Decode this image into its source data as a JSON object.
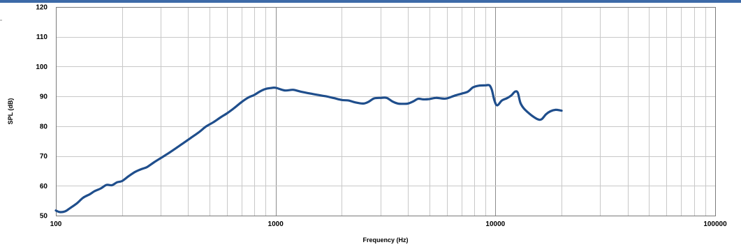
{
  "chart_data": {
    "type": "line",
    "title": "",
    "xlabel": "Frequency (Hz)",
    "ylabel": "SPL (dB)",
    "x_scale": "log",
    "xlim": [
      100,
      100000
    ],
    "ylim": [
      50,
      120
    ],
    "grid": true,
    "x_ticks": [
      "100",
      "1000",
      "10000",
      "100000"
    ],
    "y_ticks": [
      "50",
      "60",
      "70",
      "80",
      "90",
      "100",
      "110",
      "120"
    ],
    "line_color": "#1f4e8c",
    "series": [
      {
        "points": [
          [
            100,
            51.7
          ],
          [
            104,
            51.2
          ],
          [
            110,
            51.4
          ],
          [
            116,
            52.5
          ],
          [
            125,
            54.2
          ],
          [
            133,
            56.0
          ],
          [
            143,
            57.2
          ],
          [
            150,
            58.2
          ],
          [
            160,
            59.1
          ],
          [
            170,
            60.3
          ],
          [
            180,
            60.2
          ],
          [
            190,
            61.2
          ],
          [
            200,
            61.6
          ],
          [
            215,
            63.3
          ],
          [
            230,
            64.7
          ],
          [
            245,
            65.6
          ],
          [
            260,
            66.3
          ],
          [
            280,
            67.9
          ],
          [
            300,
            69.3
          ],
          [
            325,
            70.9
          ],
          [
            350,
            72.5
          ],
          [
            380,
            74.3
          ],
          [
            410,
            76.0
          ],
          [
            450,
            78.1
          ],
          [
            480,
            79.8
          ],
          [
            520,
            81.3
          ],
          [
            560,
            82.9
          ],
          [
            600,
            84.3
          ],
          [
            640,
            85.8
          ],
          [
            700,
            88.1
          ],
          [
            750,
            89.6
          ],
          [
            800,
            90.5
          ],
          [
            850,
            91.7
          ],
          [
            900,
            92.5
          ],
          [
            950,
            92.8
          ],
          [
            1000,
            92.9
          ],
          [
            1100,
            92.0
          ],
          [
            1200,
            92.2
          ],
          [
            1300,
            91.6
          ],
          [
            1500,
            90.7
          ],
          [
            1700,
            90.0
          ],
          [
            1850,
            89.4
          ],
          [
            2000,
            88.8
          ],
          [
            2150,
            88.6
          ],
          [
            2300,
            88.0
          ],
          [
            2500,
            87.6
          ],
          [
            2650,
            88.2
          ],
          [
            2800,
            89.3
          ],
          [
            3000,
            89.5
          ],
          [
            3200,
            89.5
          ],
          [
            3400,
            88.3
          ],
          [
            3600,
            87.6
          ],
          [
            3800,
            87.5
          ],
          [
            4000,
            87.6
          ],
          [
            4250,
            88.4
          ],
          [
            4450,
            89.2
          ],
          [
            4700,
            89.0
          ],
          [
            5000,
            89.1
          ],
          [
            5350,
            89.5
          ],
          [
            5700,
            89.3
          ],
          [
            6000,
            89.3
          ],
          [
            6500,
            90.2
          ],
          [
            7000,
            90.9
          ],
          [
            7500,
            91.6
          ],
          [
            7900,
            93.0
          ],
          [
            8400,
            93.6
          ],
          [
            9000,
            93.7
          ],
          [
            9400,
            93.7
          ],
          [
            9650,
            92.0
          ],
          [
            9900,
            88.6
          ],
          [
            10200,
            87.0
          ],
          [
            10700,
            88.6
          ],
          [
            11300,
            89.4
          ],
          [
            11800,
            90.3
          ],
          [
            12300,
            91.6
          ],
          [
            12650,
            91.2
          ],
          [
            13000,
            87.8
          ],
          [
            13500,
            85.9
          ],
          [
            14500,
            83.8
          ],
          [
            15500,
            82.4
          ],
          [
            16200,
            82.3
          ],
          [
            17000,
            84.0
          ],
          [
            17800,
            85.0
          ],
          [
            18800,
            85.5
          ],
          [
            19700,
            85.3
          ],
          [
            20000,
            85.2
          ]
        ]
      }
    ]
  }
}
